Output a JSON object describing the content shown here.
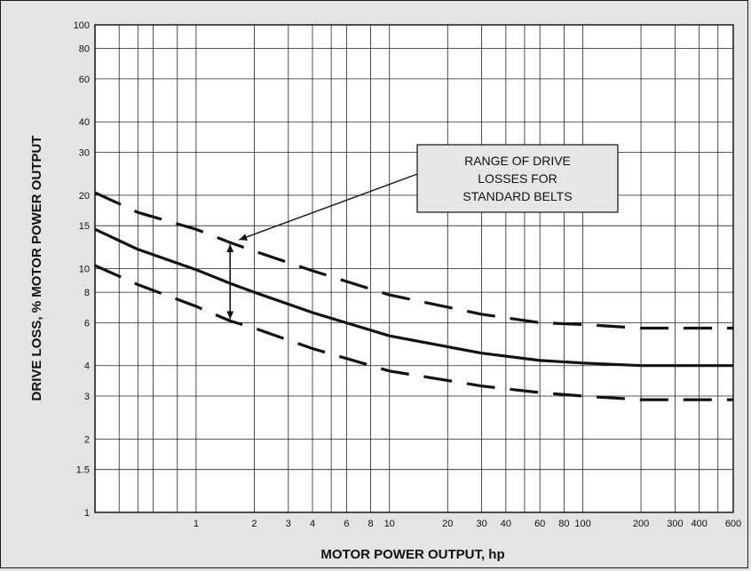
{
  "chart_data": {
    "type": "line",
    "title": "",
    "xlabel": "MOTOR POWER OUTPUT, hp",
    "ylabel": "DRIVE LOSS, % MOTOR POWER OUTPUT",
    "x_scale": "log",
    "y_scale": "log",
    "xlim": [
      0.3,
      600
    ],
    "ylim": [
      1,
      100
    ],
    "grid": true,
    "x_ticks": [
      {
        "value": 1,
        "label": "1"
      },
      {
        "value": 2,
        "label": "2"
      },
      {
        "value": 3,
        "label": "3"
      },
      {
        "value": 4,
        "label": "4"
      },
      {
        "value": 6,
        "label": "6"
      },
      {
        "value": 8,
        "label": "8"
      },
      {
        "value": 10,
        "label": "10"
      },
      {
        "value": 20,
        "label": "20"
      },
      {
        "value": 30,
        "label": "30"
      },
      {
        "value": 40,
        "label": "40"
      },
      {
        "value": 60,
        "label": "60"
      },
      {
        "value": 80,
        "label": "80"
      },
      {
        "value": 100,
        "label": "100"
      },
      {
        "value": 200,
        "label": "200"
      },
      {
        "value": 300,
        "label": "300"
      },
      {
        "value": 400,
        "label": "400"
      },
      {
        "value": 600,
        "label": "600"
      }
    ],
    "y_ticks": [
      {
        "value": 1,
        "label": "1"
      },
      {
        "value": 1.5,
        "label": "1.5"
      },
      {
        "value": 2,
        "label": "2"
      },
      {
        "value": 3,
        "label": "3"
      },
      {
        "value": 4,
        "label": "4"
      },
      {
        "value": 6,
        "label": "6"
      },
      {
        "value": 8,
        "label": "8"
      },
      {
        "value": 10,
        "label": "10"
      },
      {
        "value": 15,
        "label": "15"
      },
      {
        "value": 20,
        "label": "20"
      },
      {
        "value": 30,
        "label": "30"
      },
      {
        "value": 40,
        "label": "40"
      },
      {
        "value": 60,
        "label": "60"
      },
      {
        "value": 80,
        "label": "80"
      },
      {
        "value": 100,
        "label": "100"
      }
    ],
    "x_minor_grid": [
      0.4,
      0.5,
      0.6,
      0.8,
      5,
      50,
      500
    ],
    "series": [
      {
        "style": "dashed",
        "x": [
          0.3,
          0.5,
          1,
          1.5,
          2,
          4,
          10,
          30,
          60,
          100,
          200,
          600
        ],
        "y": [
          20.5,
          17,
          14.5,
          12.8,
          11.8,
          9.8,
          7.8,
          6.5,
          6.0,
          5.9,
          5.7,
          5.7
        ]
      },
      {
        "style": "solid",
        "x": [
          0.3,
          0.5,
          1,
          1.5,
          2,
          4,
          10,
          30,
          60,
          100,
          200,
          600
        ],
        "y": [
          14.5,
          12,
          9.9,
          8.7,
          8.0,
          6.6,
          5.3,
          4.5,
          4.2,
          4.1,
          4.0,
          4.0
        ]
      },
      {
        "style": "dashed",
        "x": [
          0.3,
          0.5,
          1,
          1.5,
          2,
          4,
          10,
          30,
          60,
          100,
          200,
          600
        ],
        "y": [
          10.3,
          8.6,
          7.0,
          6.1,
          5.7,
          4.7,
          3.8,
          3.3,
          3.1,
          3.0,
          2.9,
          2.9
        ]
      }
    ],
    "annotations": [
      {
        "text_lines": [
          "RANGE OF DRIVE",
          "LOSSES FOR",
          "STANDARD BELTS"
        ],
        "range_x": 1.5,
        "range_y": [
          6.1,
          12.8
        ]
      }
    ]
  }
}
